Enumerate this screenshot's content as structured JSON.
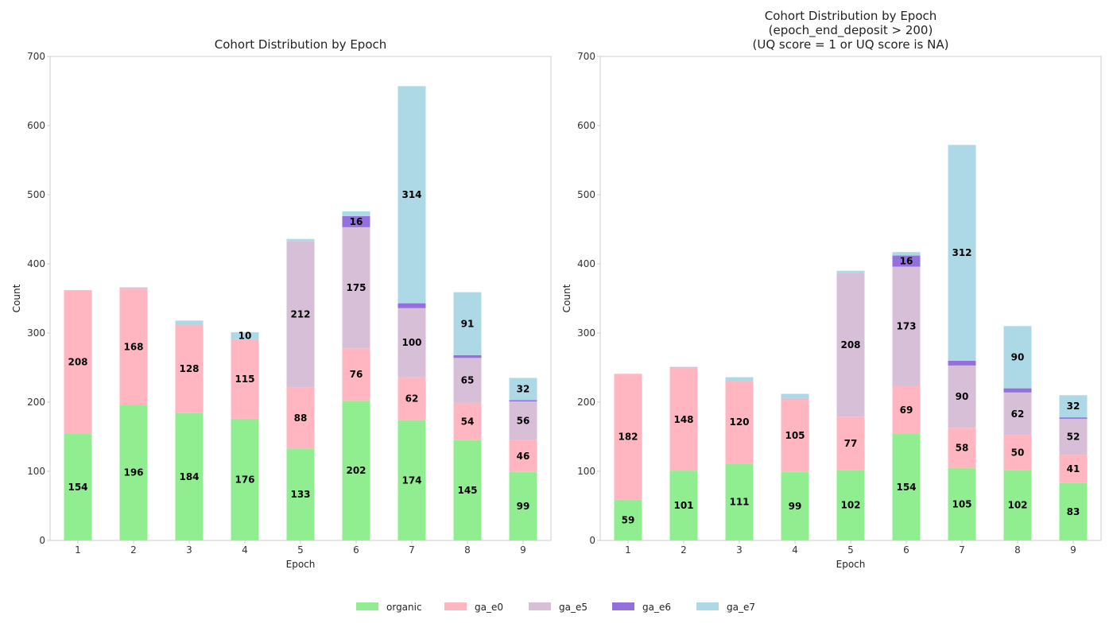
{
  "colors": {
    "organic": "#90ee90",
    "ga_e0": "#ffb6c1",
    "ga_e5": "#d8bfd8",
    "ga_e6": "#9370db",
    "ga_e7": "#add8e6"
  },
  "legend": [
    "organic",
    "ga_e0",
    "ga_e5",
    "ga_e6",
    "ga_e7"
  ],
  "chart_data": [
    {
      "type": "bar",
      "stacked": true,
      "title": [
        "Cohort Distribution by Epoch"
      ],
      "xlabel": "Epoch",
      "ylabel": "Count",
      "ylim": [
        0,
        700
      ],
      "yticks": [
        0,
        100,
        200,
        300,
        400,
        500,
        600,
        700
      ],
      "categories": [
        "1",
        "2",
        "3",
        "4",
        "5",
        "6",
        "7",
        "8",
        "9"
      ],
      "series": [
        {
          "name": "organic",
          "values": [
            154,
            196,
            184,
            176,
            133,
            202,
            174,
            145,
            99
          ]
        },
        {
          "name": "ga_e0",
          "values": [
            208,
            168,
            128,
            115,
            88,
            76,
            62,
            54,
            46
          ]
        },
        {
          "name": "ga_e5",
          "values": [
            0,
            2,
            0,
            0,
            212,
            175,
            100,
            65,
            56
          ]
        },
        {
          "name": "ga_e6",
          "values": [
            0,
            0,
            0,
            0,
            0,
            16,
            7,
            4,
            2
          ]
        },
        {
          "name": "ga_e7",
          "values": [
            0,
            0,
            6,
            10,
            3,
            7,
            314,
            91,
            32
          ]
        }
      ],
      "label_min": 10
    },
    {
      "type": "bar",
      "stacked": true,
      "title": [
        "Cohort Distribution by Epoch",
        "(epoch_end_deposit > 200)",
        "(UQ score = 1 or UQ score is NA)"
      ],
      "xlabel": "Epoch",
      "ylabel": "Count",
      "ylim": [
        0,
        700
      ],
      "yticks": [
        0,
        100,
        200,
        300,
        400,
        500,
        600,
        700
      ],
      "categories": [
        "1",
        "2",
        "3",
        "4",
        "5",
        "6",
        "7",
        "8",
        "9"
      ],
      "series": [
        {
          "name": "organic",
          "values": [
            59,
            101,
            111,
            99,
            102,
            154,
            105,
            102,
            83
          ]
        },
        {
          "name": "ga_e0",
          "values": [
            182,
            148,
            120,
            105,
            77,
            69,
            58,
            50,
            41
          ]
        },
        {
          "name": "ga_e5",
          "values": [
            0,
            2,
            0,
            2,
            208,
            173,
            90,
            62,
            52
          ]
        },
        {
          "name": "ga_e6",
          "values": [
            0,
            0,
            0,
            0,
            0,
            16,
            7,
            6,
            2
          ]
        },
        {
          "name": "ga_e7",
          "values": [
            0,
            0,
            5,
            6,
            3,
            5,
            312,
            90,
            32
          ]
        }
      ],
      "label_min": 10
    }
  ]
}
